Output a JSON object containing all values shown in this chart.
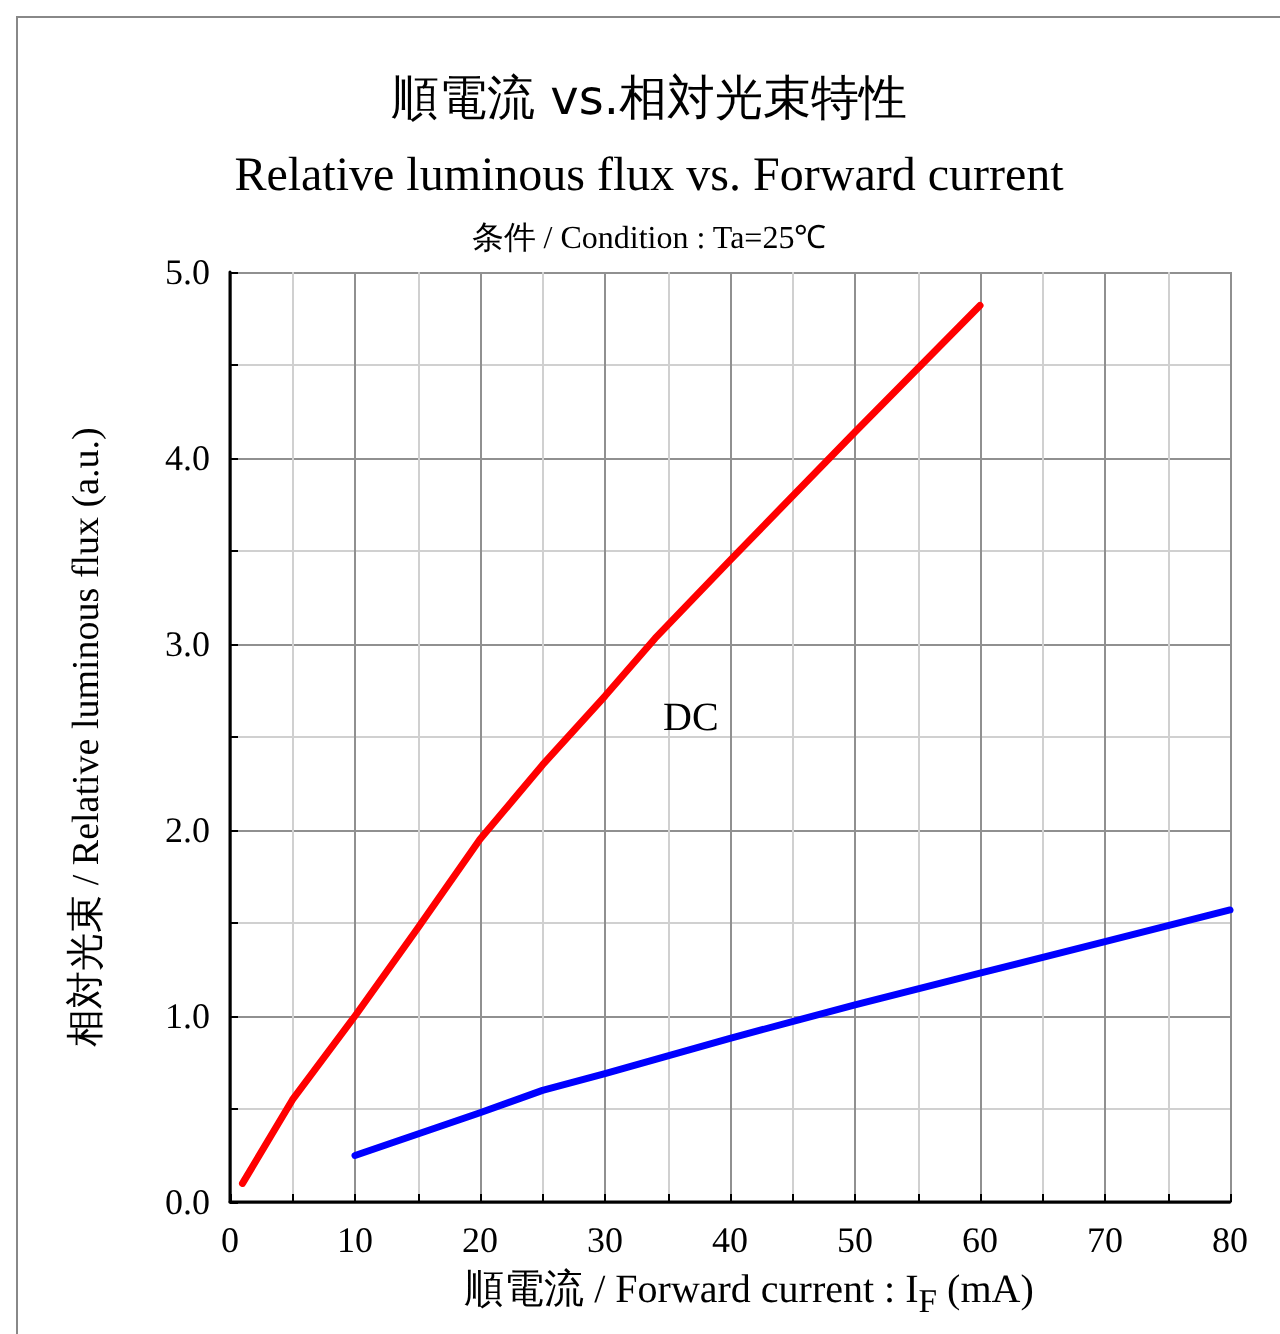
{
  "chart_data": {
    "type": "line",
    "title": "順電流 vs.相対光束特性",
    "subtitle": "Relative luminous flux vs. Forward current",
    "xlabel": "順電流 / Forward current : I$_{F}$ (mA)",
    "ylabel": "相対光束 / Relative luminous flux (a.u.)",
    "annotations": [
      "条件 / Condition : Ta=25℃"
    ],
    "series": [
      {
        "name": "DC",
        "color": "#ff0000",
        "x": [
          1,
          5,
          10,
          15,
          20,
          25,
          30,
          34,
          40,
          50,
          60
        ],
        "values": [
          0.1,
          0.55,
          1.0,
          1.47,
          1.95,
          2.35,
          2.72,
          3.03,
          3.45,
          4.14,
          4.82
        ]
      },
      {
        "color": "#0000ff",
        "x": [
          10,
          20,
          25,
          30,
          40,
          50,
          60,
          70,
          80
        ],
        "values": [
          0.25,
          0.48,
          0.6,
          0.69,
          0.88,
          1.06,
          1.23,
          1.4,
          1.57
        ]
      }
    ],
    "xlim": [
      0,
      80
    ],
    "xticks": [
      0,
      {
        "value": 5,
        "label": null
      },
      10,
      {
        "value": 15,
        "label": null
      },
      20,
      {
        "value": 25,
        "label": null
      },
      30,
      {
        "value": 35,
        "label": null
      },
      40,
      {
        "value": 45,
        "label": null
      },
      50,
      {
        "value": 55,
        "label": null
      },
      60,
      {
        "value": 65,
        "label": null
      },
      70,
      {
        "value": 75,
        "label": null
      },
      80
    ],
    "ylim": [
      0,
      5
    ],
    "yticks": [
      {
        "value": 0,
        "label": "0.0"
      },
      {
        "value": 0.5,
        "label": null
      },
      {
        "value": 1,
        "label": "1.0"
      },
      {
        "value": 1.5,
        "label": null
      },
      {
        "value": 2,
        "label": "2.0"
      },
      {
        "value": 2.5,
        "label": null
      },
      {
        "value": 3,
        "label": "3.0"
      },
      {
        "value": 3.5,
        "label": null
      },
      {
        "value": 4,
        "label": "4.0"
      },
      {
        "value": 4.5,
        "label": null
      },
      {
        "value": 5,
        "label": "5.0"
      }
    ],
    "grid": true,
    "marker": "none",
    "line_style": "solid"
  }
}
